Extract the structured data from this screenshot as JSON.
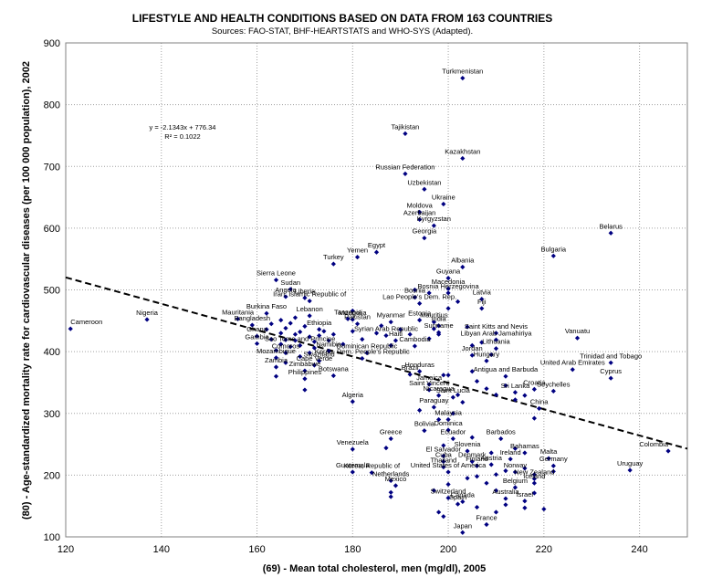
{
  "chart_data": {
    "type": "scatter",
    "title": "LIFESTYLE AND HEALTH CONDITIONS BASED ON DATA FROM 163 COUNTRIES",
    "subtitle": "Sources: FAO-STAT, BHF-HEARTSTATS and WHO-SYS (Adapted).",
    "xlabel": "(69) - Mean total cholesterol, men (mg/dl), 2005",
    "ylabel": "(80) - Age-standardized mortality rate for cardiovascular diseases (per 100 000 population), 2002",
    "xlim": [
      120,
      250
    ],
    "ylim": [
      100,
      900
    ],
    "xticks": [
      120,
      140,
      160,
      180,
      200,
      220,
      240
    ],
    "yticks": [
      100,
      200,
      300,
      400,
      500,
      600,
      700,
      800,
      900
    ],
    "grid": true,
    "point_color": "#000080",
    "trendline": {
      "slope": -2.1343,
      "intercept": 776.34,
      "equation": "y = -2.1343x + 776.34",
      "r_squared": "R² = 0.1022",
      "style": "dashed"
    },
    "labeled_points": [
      {
        "label": "Turkmenistan",
        "x": 203,
        "y": 843
      },
      {
        "label": "Tajikistan",
        "x": 191,
        "y": 753
      },
      {
        "label": "Kazakhstan",
        "x": 203,
        "y": 713
      },
      {
        "label": "Russian Federation",
        "x": 191,
        "y": 688
      },
      {
        "label": "Uzbekistan",
        "x": 195,
        "y": 663
      },
      {
        "label": "Ukraine",
        "x": 199,
        "y": 639
      },
      {
        "label": "Moldova",
        "x": 194,
        "y": 626
      },
      {
        "label": "Azerbaijan",
        "x": 194,
        "y": 614
      },
      {
        "label": "Kyrgyzstan",
        "x": 197,
        "y": 604
      },
      {
        "label": "Georgia",
        "x": 195,
        "y": 584
      },
      {
        "label": "Belarus",
        "x": 234,
        "y": 592
      },
      {
        "label": "Bulgaria",
        "x": 222,
        "y": 555
      },
      {
        "label": "Yemen",
        "x": 181,
        "y": 553
      },
      {
        "label": "Egypt",
        "x": 185,
        "y": 561
      },
      {
        "label": "Turkey",
        "x": 176,
        "y": 542
      },
      {
        "label": "Albania",
        "x": 203,
        "y": 537
      },
      {
        "label": "Sierra Leone",
        "x": 164,
        "y": 516
      },
      {
        "label": "Sudan",
        "x": 167,
        "y": 501
      },
      {
        "label": "Angola",
        "x": 166,
        "y": 489
      },
      {
        "label": "Liberia",
        "x": 170,
        "y": 487
      },
      {
        "label": "Guyana",
        "x": 200,
        "y": 519
      },
      {
        "label": "Macedonia",
        "x": 200,
        "y": 502
      },
      {
        "label": "Bosnia Herzegovina",
        "x": 200,
        "y": 495
      },
      {
        "label": "Bosnia",
        "x": 193,
        "y": 488
      },
      {
        "label": "Latvia",
        "x": 207,
        "y": 485
      },
      {
        "label": "Fiji",
        "x": 207,
        "y": 470
      },
      {
        "label": "Lao People's Dem. Rep.",
        "x": 194,
        "y": 478
      },
      {
        "label": "Iran, Islamic Republic of",
        "x": 171,
        "y": 482
      },
      {
        "label": "Cameroon",
        "x": 121,
        "y": 437
      },
      {
        "label": "Nigeria",
        "x": 137,
        "y": 452
      },
      {
        "label": "Mauritania",
        "x": 156,
        "y": 453
      },
      {
        "label": "Burkina Faso",
        "x": 162,
        "y": 462
      },
      {
        "label": "Lebanon",
        "x": 171,
        "y": 458
      },
      {
        "label": "Bangladesh",
        "x": 159,
        "y": 443
      },
      {
        "label": "Ethiopia",
        "x": 173,
        "y": 436
      },
      {
        "label": "Ghana",
        "x": 160,
        "y": 425
      },
      {
        "label": "Mongolia",
        "x": 180,
        "y": 452
      },
      {
        "label": "Pakistan",
        "x": 181,
        "y": 445
      },
      {
        "label": "Tanzania",
        "x": 179,
        "y": 453
      },
      {
        "label": "Myanmar",
        "x": 188,
        "y": 448
      },
      {
        "label": "Estonia",
        "x": 194,
        "y": 451
      },
      {
        "label": "Mauritius",
        "x": 197,
        "y": 448
      },
      {
        "label": "India",
        "x": 198,
        "y": 442
      },
      {
        "label": "Suriname",
        "x": 198,
        "y": 431
      },
      {
        "label": "Syrian Arab Republic",
        "x": 187,
        "y": 426
      },
      {
        "label": "Haiti",
        "x": 189,
        "y": 418
      },
      {
        "label": "Cambodia",
        "x": 193,
        "y": 409
      },
      {
        "label": "Libyan Arab Jamahiriya",
        "x": 210,
        "y": 419
      },
      {
        "label": "Saint Kitts and Nevis",
        "x": 210,
        "y": 430
      },
      {
        "label": "Lithuania",
        "x": 210,
        "y": 405
      },
      {
        "label": "Jordan",
        "x": 205,
        "y": 394
      },
      {
        "label": "Gambia",
        "x": 160,
        "y": 413
      },
      {
        "label": "Sao Tome and Principe",
        "x": 169,
        "y": 410
      },
      {
        "label": "Comoros",
        "x": 166,
        "y": 398
      },
      {
        "label": "Namibia",
        "x": 175,
        "y": 401
      },
      {
        "label": "Mozambique",
        "x": 164,
        "y": 390
      },
      {
        "label": "Zambia",
        "x": 164,
        "y": 375
      },
      {
        "label": "Dominican Republic",
        "x": 183,
        "y": 398
      },
      {
        "label": "Korea, Dem. People's Republic",
        "x": 182,
        "y": 389
      },
      {
        "label": "Swaziland",
        "x": 173,
        "y": 385
      },
      {
        "label": "Cape Verde",
        "x": 172,
        "y": 378
      },
      {
        "label": "Zimbabwe",
        "x": 170,
        "y": 369
      },
      {
        "label": "Botswana",
        "x": 176,
        "y": 361
      },
      {
        "label": "Philippines",
        "x": 170,
        "y": 356
      },
      {
        "label": "Hungary",
        "x": 208,
        "y": 385
      },
      {
        "label": "Vanuatu",
        "x": 227,
        "y": 422
      },
      {
        "label": "Trinidad and Tobago",
        "x": 234,
        "y": 382
      },
      {
        "label": "United Arab Emirates",
        "x": 226,
        "y": 371
      },
      {
        "label": "Cyprus",
        "x": 234,
        "y": 357
      },
      {
        "label": "Seychelles",
        "x": 222,
        "y": 336
      },
      {
        "label": "Antigua and Barbuda",
        "x": 212,
        "y": 360
      },
      {
        "label": "Croatia",
        "x": 218,
        "y": 339
      },
      {
        "label": "Brazil",
        "x": 192,
        "y": 363
      },
      {
        "label": "Honduras",
        "x": 194,
        "y": 368
      },
      {
        "label": "Jamaica",
        "x": 196,
        "y": 347
      },
      {
        "label": "Saint Vincent",
        "x": 196,
        "y": 338
      },
      {
        "label": "Sri Lanka",
        "x": 214,
        "y": 334
      },
      {
        "label": "Nicaragua",
        "x": 198,
        "y": 329
      },
      {
        "label": "Saint Lucia",
        "x": 201,
        "y": 326
      },
      {
        "label": "Algeria",
        "x": 180,
        "y": 319
      },
      {
        "label": "Paraguay",
        "x": 197,
        "y": 310
      },
      {
        "label": "China",
        "x": 219,
        "y": 308
      },
      {
        "label": "Malaysia",
        "x": 200,
        "y": 290
      },
      {
        "label": "Bolivia",
        "x": 195,
        "y": 272
      },
      {
        "label": "Dominica",
        "x": 200,
        "y": 273
      },
      {
        "label": "Greece",
        "x": 188,
        "y": 259
      },
      {
        "label": "Venezuela",
        "x": 180,
        "y": 242
      },
      {
        "label": "Ecuador",
        "x": 201,
        "y": 259
      },
      {
        "label": "Barbados",
        "x": 211,
        "y": 259
      },
      {
        "label": "Slovenia",
        "x": 204,
        "y": 239
      },
      {
        "label": "Bahamas",
        "x": 216,
        "y": 236
      },
      {
        "label": "El Salvador",
        "x": 199,
        "y": 231
      },
      {
        "label": "Malta",
        "x": 221,
        "y": 227
      },
      {
        "label": "Colombia",
        "x": 246,
        "y": 239
      },
      {
        "label": "Uruguay",
        "x": 238,
        "y": 208
      },
      {
        "label": "Cuba",
        "x": 199,
        "y": 222
      },
      {
        "label": "Ireland",
        "x": 213,
        "y": 226
      },
      {
        "label": "Denmark",
        "x": 205,
        "y": 222
      },
      {
        "label": "Austria",
        "x": 209,
        "y": 217
      },
      {
        "label": "Germany",
        "x": 222,
        "y": 215
      },
      {
        "label": "Finland",
        "x": 206,
        "y": 215
      },
      {
        "label": "Thailand",
        "x": 199,
        "y": 213
      },
      {
        "label": "Guatemala",
        "x": 180,
        "y": 205
      },
      {
        "label": "Korea, Republic of",
        "x": 184,
        "y": 204
      },
      {
        "label": "United States of America",
        "x": 200,
        "y": 205
      },
      {
        "label": "Norway",
        "x": 214,
        "y": 205
      },
      {
        "label": "Netherlands",
        "x": 188,
        "y": 191
      },
      {
        "label": "Mexico",
        "x": 189,
        "y": 183
      },
      {
        "label": "New Zealand",
        "x": 218,
        "y": 194
      },
      {
        "label": "Belgium",
        "x": 214,
        "y": 180
      },
      {
        "label": "Iceland",
        "x": 218,
        "y": 187
      },
      {
        "label": "Australia",
        "x": 212,
        "y": 162
      },
      {
        "label": "Israel",
        "x": 216,
        "y": 158
      },
      {
        "label": "Switzerland",
        "x": 200,
        "y": 163
      },
      {
        "label": "Canada",
        "x": 203,
        "y": 157
      },
      {
        "label": "Spain",
        "x": 202,
        "y": 153
      },
      {
        "label": "France",
        "x": 208,
        "y": 120
      },
      {
        "label": "Japan",
        "x": 203,
        "y": 107
      }
    ],
    "extra_points": [
      [
        164,
        360
      ],
      [
        164,
        402
      ],
      [
        165,
        412
      ],
      [
        165,
        430
      ],
      [
        166,
        419
      ],
      [
        166,
        438
      ],
      [
        163,
        445
      ],
      [
        167,
        446
      ],
      [
        168,
        428
      ],
      [
        168,
        418
      ],
      [
        169,
        432
      ],
      [
        170,
        441
      ],
      [
        171,
        424
      ],
      [
        172,
        416
      ],
      [
        172,
        406
      ],
      [
        173,
        426
      ],
      [
        174,
        433
      ],
      [
        171,
        398
      ],
      [
        169,
        392
      ],
      [
        167,
        408
      ],
      [
        166,
        382
      ],
      [
        170,
        338
      ],
      [
        163,
        420
      ],
      [
        162,
        436
      ],
      [
        165,
        451
      ],
      [
        168,
        455
      ],
      [
        175,
        418
      ],
      [
        176,
        428
      ],
      [
        178,
        412
      ],
      [
        180,
        433
      ],
      [
        180,
        466
      ],
      [
        182,
        420
      ],
      [
        185,
        430
      ],
      [
        186,
        442
      ],
      [
        188,
        410
      ],
      [
        190,
        436
      ],
      [
        192,
        428
      ],
      [
        196,
        421
      ],
      [
        197,
        437
      ],
      [
        198,
        428
      ],
      [
        196,
        495
      ],
      [
        193,
        500
      ],
      [
        200,
        470
      ],
      [
        202,
        481
      ],
      [
        204,
        440
      ],
      [
        205,
        368
      ],
      [
        206,
        352
      ],
      [
        208,
        340
      ],
      [
        210,
        330
      ],
      [
        212,
        345
      ],
      [
        214,
        322
      ],
      [
        216,
        329
      ],
      [
        218,
        292
      ],
      [
        199,
        362
      ],
      [
        194,
        305
      ],
      [
        198,
        290
      ],
      [
        201,
        300
      ],
      [
        203,
        318
      ],
      [
        210,
        201
      ],
      [
        212,
        207
      ],
      [
        216,
        211
      ],
      [
        218,
        201
      ],
      [
        208,
        187
      ],
      [
        210,
        175
      ],
      [
        206,
        198
      ],
      [
        204,
        195
      ],
      [
        200,
        185
      ],
      [
        197,
        175
      ],
      [
        198,
        140
      ],
      [
        199,
        133
      ],
      [
        220,
        145
      ],
      [
        216,
        147
      ],
      [
        222,
        206
      ],
      [
        188,
        165
      ],
      [
        188,
        172
      ],
      [
        205,
        261
      ],
      [
        209,
        236
      ],
      [
        214,
        243
      ],
      [
        187,
        244
      ],
      [
        199,
        248
      ],
      [
        200,
        362
      ],
      [
        202,
        330
      ],
      [
        205,
        410
      ],
      [
        207,
        415
      ],
      [
        209,
        395
      ],
      [
        218,
        171
      ],
      [
        206,
        148
      ],
      [
        210,
        140
      ],
      [
        212,
        152
      ]
    ]
  }
}
